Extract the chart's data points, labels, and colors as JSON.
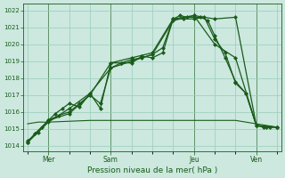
{
  "title": "Pression niveau de la mer( hPa )",
  "yticks": [
    1014,
    1015,
    1016,
    1017,
    1018,
    1019,
    1020,
    1021,
    1022
  ],
  "day_labels": [
    "Mer",
    "Sam",
    "Jeu",
    "Ven"
  ],
  "bg_color": "#cce8df",
  "grid_color": "#99ccbb",
  "line_color": "#1a5c1a",
  "line1_x": [
    0,
    0.33,
    0.67,
    1.0,
    1.33,
    1.67,
    2.0,
    2.5,
    3.0,
    3.5,
    4.0,
    4.5,
    5.0,
    5.5,
    6.0,
    6.5,
    7.0,
    7.33,
    7.67,
    8.0,
    8.33,
    8.67,
    9.0,
    9.5,
    10.0,
    10.5,
    11.0,
    11.33,
    11.67,
    12.0
  ],
  "line1_y": [
    1014.2,
    1014.7,
    1015.1,
    1015.5,
    1015.9,
    1016.2,
    1016.5,
    1016.3,
    1017.1,
    1016.2,
    1018.9,
    1018.9,
    1018.9,
    1019.3,
    1019.2,
    1019.5,
    1021.5,
    1021.7,
    1021.6,
    1021.6,
    1021.6,
    1021.4,
    1020.5,
    1019.2,
    1017.8,
    1017.1,
    1015.2,
    1015.1,
    1015.1,
    1015.1
  ],
  "line2_x": [
    0,
    0.5,
    1.0,
    1.5,
    2.0,
    2.5,
    3.0,
    3.5,
    4.0,
    4.5,
    5.0,
    5.5,
    6.0,
    6.5,
    7.0,
    7.5,
    8.0,
    8.5,
    9.0,
    9.5,
    10.0,
    10.5,
    11.0,
    11.5,
    12.0
  ],
  "line2_y": [
    1014.3,
    1014.8,
    1015.5,
    1015.8,
    1016.0,
    1016.5,
    1017.0,
    1016.5,
    1018.6,
    1018.9,
    1019.1,
    1019.2,
    1019.4,
    1019.8,
    1021.5,
    1021.5,
    1021.5,
    1021.6,
    1020.3,
    1019.5,
    1017.7,
    1017.1,
    1015.2,
    1015.1,
    1015.1
  ],
  "line3_x": [
    0,
    1.0,
    2.0,
    3.0,
    4.0,
    5.0,
    6.0,
    7.0,
    8.0,
    9.0,
    10.0,
    11.0,
    12.0
  ],
  "line3_y": [
    1014.2,
    1015.4,
    1016.2,
    1017.1,
    1018.6,
    1019.0,
    1019.4,
    1021.4,
    1021.7,
    1020.0,
    1019.2,
    1015.2,
    1015.1
  ],
  "line4_x": [
    0,
    1.0,
    2.0,
    3.0,
    4.0,
    5.0,
    6.0,
    7.0,
    8.0,
    9.0,
    10.0,
    11.0,
    12.0
  ],
  "line4_y": [
    1014.2,
    1015.5,
    1015.9,
    1017.0,
    1018.9,
    1019.2,
    1019.5,
    1021.5,
    1021.7,
    1021.5,
    1021.6,
    1015.2,
    1015.1
  ],
  "flat_x": [
    0,
    0.5,
    1.0,
    2.0,
    3.0,
    4.0,
    5.0,
    6.0,
    7.0,
    8.0,
    9.0,
    10.0,
    11.0,
    11.5,
    12.0
  ],
  "flat_y": [
    1015.3,
    1015.4,
    1015.4,
    1015.45,
    1015.5,
    1015.5,
    1015.5,
    1015.5,
    1015.5,
    1015.5,
    1015.5,
    1015.5,
    1015.3,
    1015.2,
    1015.1
  ],
  "xlim": [
    -0.2,
    12.2
  ],
  "ylim": [
    1013.7,
    1022.4
  ],
  "day_positions": [
    1.0,
    4.0,
    8.0,
    11.0
  ],
  "vline_positions": [
    1.0,
    4.0,
    8.0,
    11.0
  ]
}
